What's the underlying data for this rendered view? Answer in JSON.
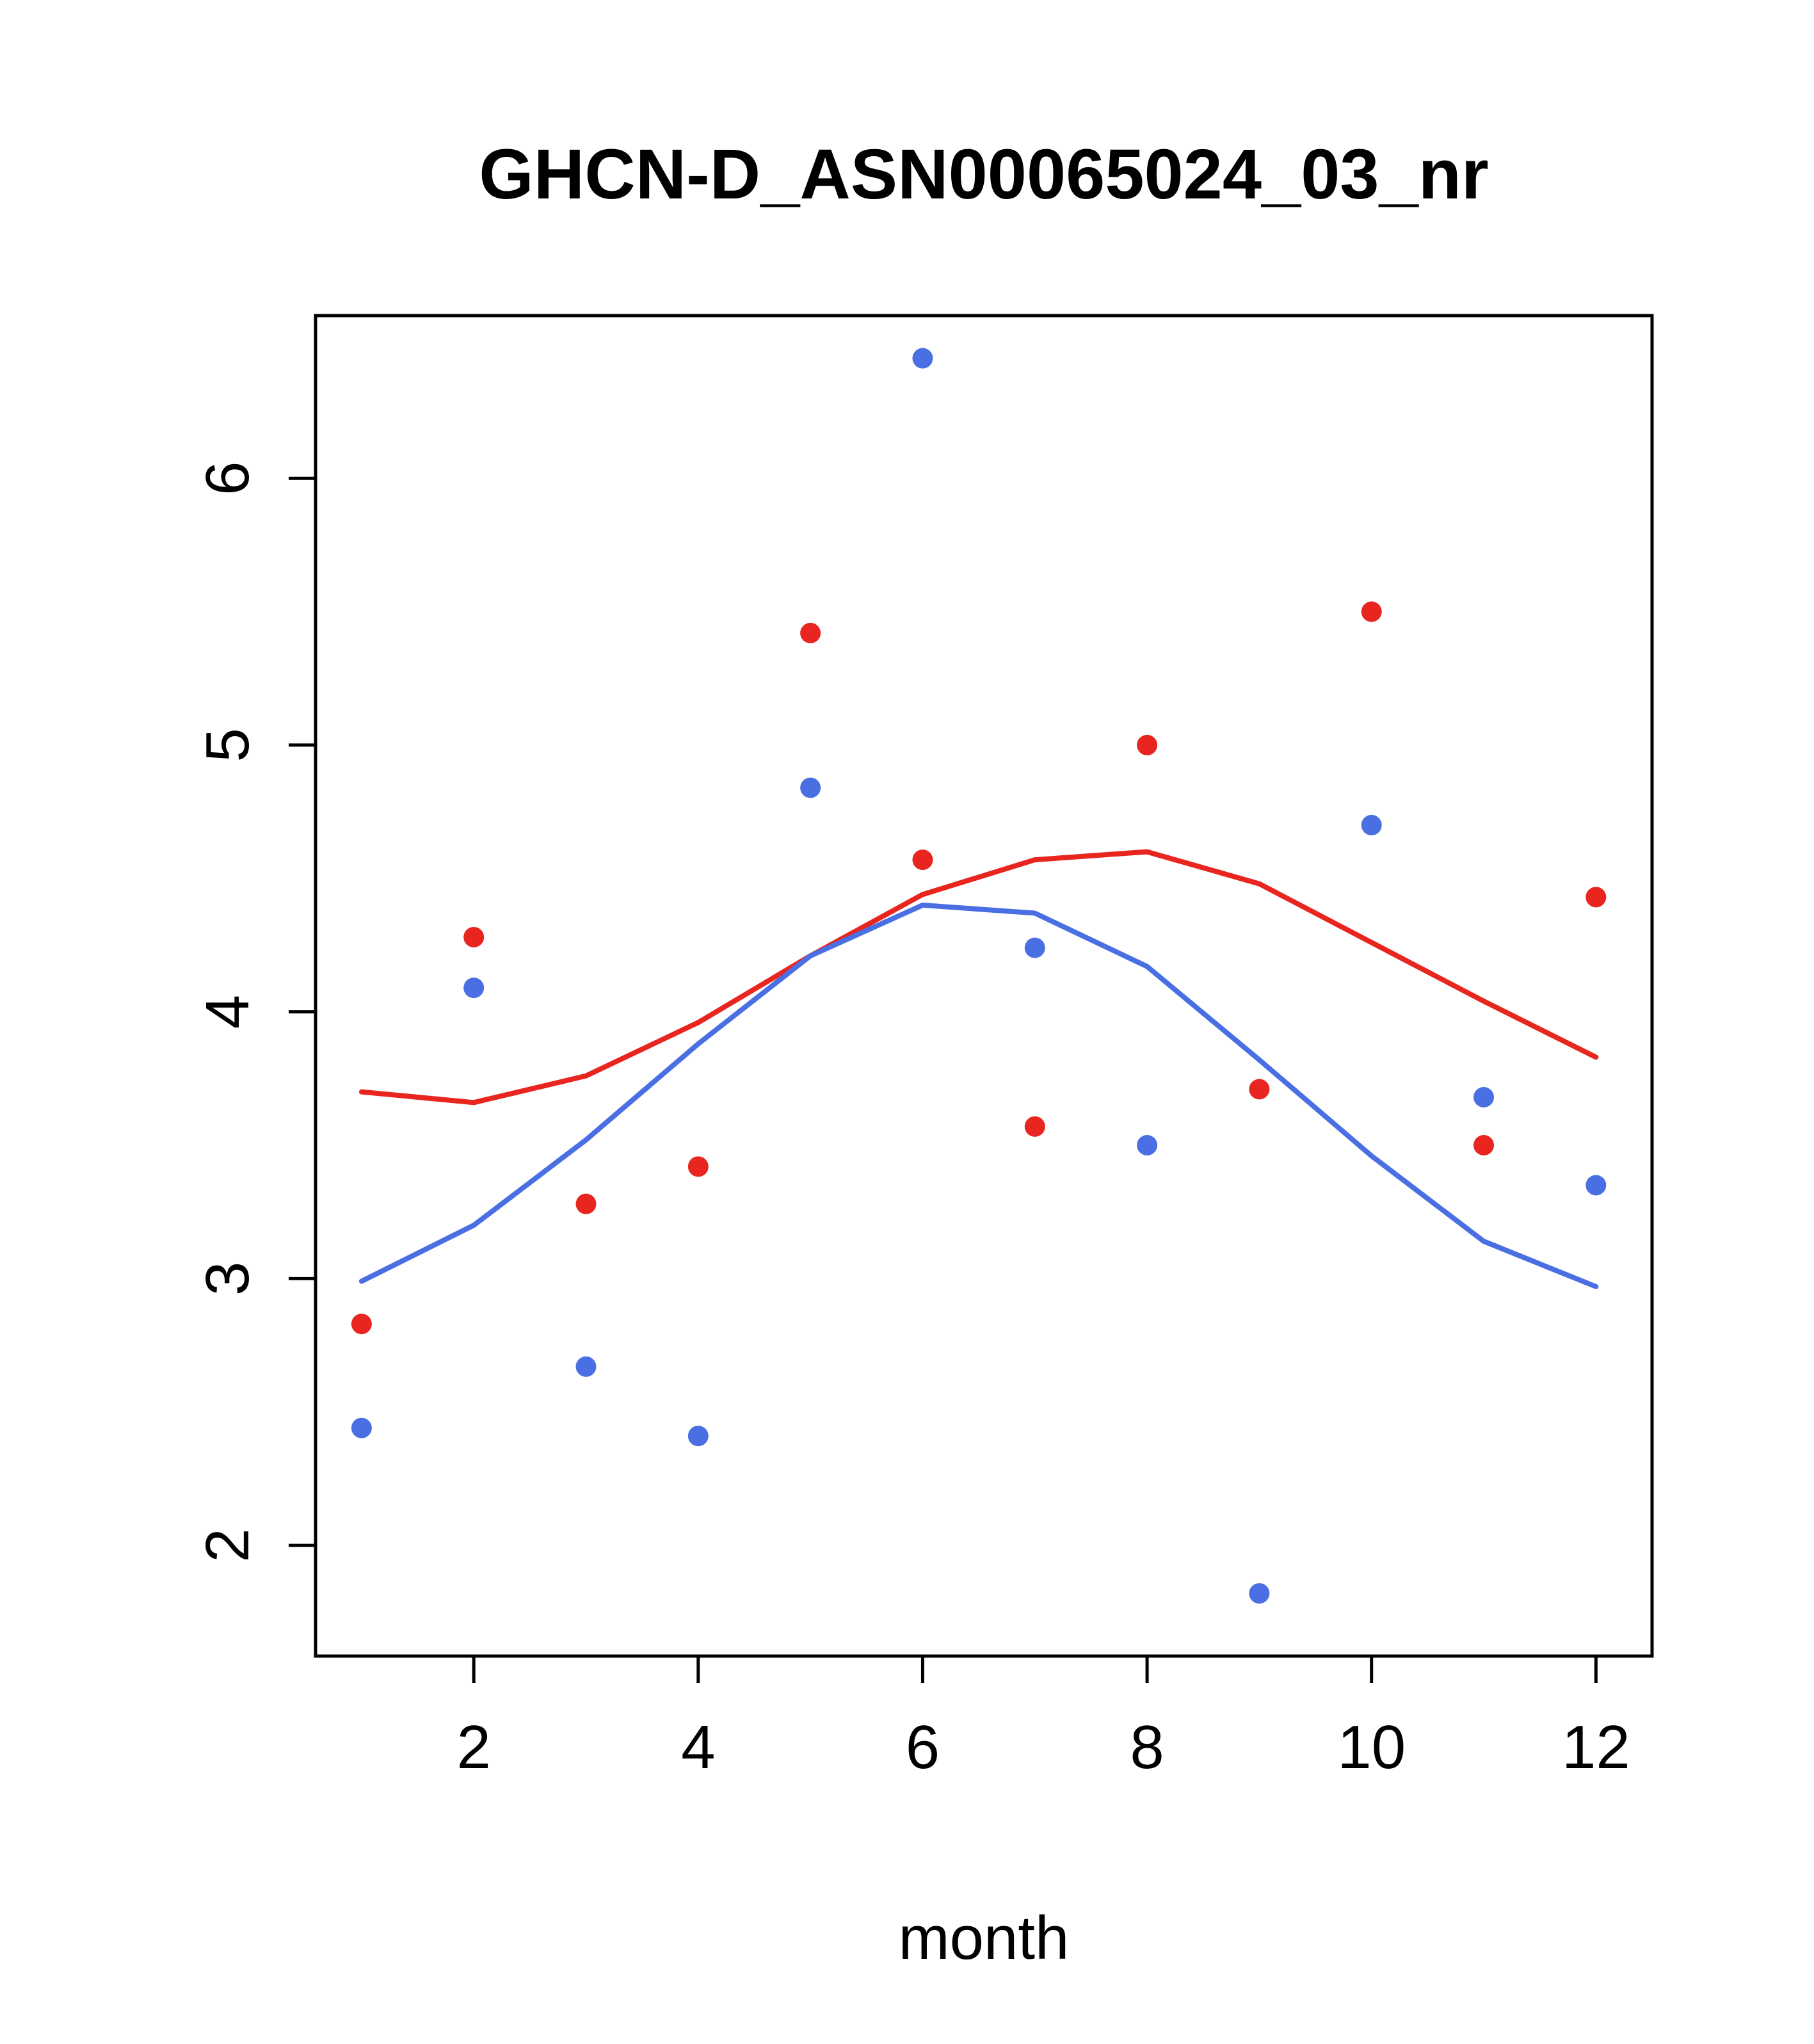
{
  "title": "GHCN-D_ASN00065024_03_nr",
  "xlabel": "month",
  "chart_data": {
    "type": "scatter",
    "title": "GHCN-D_ASN00065024_03_nr",
    "xlabel": "month",
    "ylabel": "",
    "xlim": [
      0.59,
      12.5
    ],
    "ylim": [
      1.585,
      6.61
    ],
    "xticks": [
      2,
      4,
      6,
      8,
      10,
      12
    ],
    "yticks": [
      2,
      3,
      4,
      5,
      6
    ],
    "x": [
      1,
      2,
      3,
      4,
      5,
      6,
      7,
      8,
      9,
      10,
      11,
      12
    ],
    "colors": {
      "red": "#E8251F",
      "blue": "#4A6FE3"
    },
    "series": [
      {
        "name": "red-points",
        "kind": "points",
        "color": "#E8251F",
        "values": [
          2.83,
          4.28,
          3.28,
          3.42,
          5.42,
          4.57,
          3.57,
          5.0,
          3.71,
          5.5,
          3.5,
          4.43
        ]
      },
      {
        "name": "blue-points",
        "kind": "points",
        "color": "#4A6FE3",
        "values": [
          2.44,
          4.09,
          2.67,
          2.41,
          4.84,
          6.45,
          4.24,
          3.5,
          1.82,
          4.7,
          3.68,
          3.35
        ]
      },
      {
        "name": "red-smooth-line",
        "kind": "line",
        "color": "#E8251F",
        "values": [
          3.7,
          3.66,
          3.76,
          3.96,
          4.21,
          4.44,
          4.57,
          4.6,
          4.48,
          4.26,
          4.04,
          3.83
        ]
      },
      {
        "name": "blue-smooth-line",
        "kind": "line",
        "color": "#4A6FE3",
        "values": [
          2.99,
          3.2,
          3.52,
          3.88,
          4.21,
          4.4,
          4.37,
          4.17,
          3.82,
          3.46,
          3.14,
          2.97
        ]
      }
    ]
  }
}
